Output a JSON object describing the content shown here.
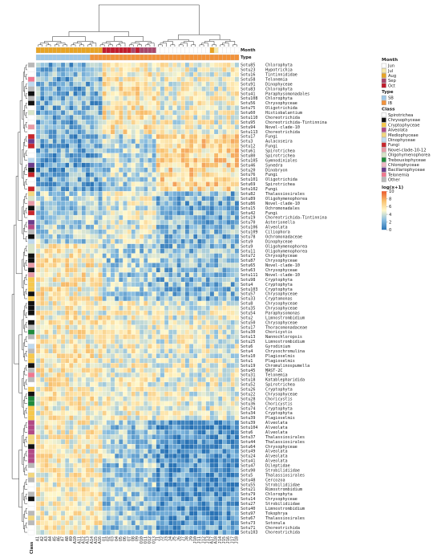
{
  "chart_data": {
    "type": "heatmap",
    "title": "",
    "annotation_labels": {
      "month": "Month",
      "type": "Type",
      "class": "Class"
    },
    "columns": [
      "A1",
      "A2",
      "A3",
      "A4",
      "A5",
      "A6",
      "A7",
      "A8",
      "A9",
      "A10",
      "A11",
      "A12",
      "A13",
      "A14",
      "A15",
      "A16",
      "O1",
      "O2",
      "O3",
      "O4",
      "O5",
      "O6",
      "O7",
      "O8",
      "O9",
      "O10",
      "O11",
      "O12",
      "O13",
      "J1",
      "J2",
      "J3",
      "J4",
      "J5",
      "J6",
      "J7",
      "J8",
      "J9",
      "J10",
      "J11",
      "J12",
      "J13",
      "A17",
      "A18",
      "J14",
      "J15",
      "J16",
      "J17",
      "J18"
    ],
    "column_month": [
      "Aug",
      "Aug",
      "Aug",
      "Aug",
      "Aug",
      "Aug",
      "Aug",
      "Aug",
      "Aug",
      "Aug",
      "Aug",
      "Aug",
      "Aug",
      "Aug",
      "Aug",
      "Aug",
      "Oct",
      "Oct",
      "Oct",
      "Oct",
      "Oct",
      "Oct",
      "Oct",
      "Sep",
      "Oct",
      "Sep",
      "Sep",
      "Sep",
      "Sep",
      "Jun",
      "Jun",
      "Jun",
      "Jun",
      "Jun",
      "Jun",
      "Jun",
      "Jun",
      "Jun",
      "Jun",
      "Jun",
      "Jun",
      "Jun",
      "Aug",
      "Jul",
      "Jun",
      "Jun",
      "Jun",
      "Jun",
      "Jun"
    ],
    "column_type": [
      "SB",
      "SB",
      "SB",
      "SB",
      "SB",
      "SB",
      "SB",
      "SB",
      "SB",
      "SB",
      "SB",
      "SB",
      "SB",
      "IB",
      "IB",
      "IB",
      "IB",
      "IB",
      "IB",
      "IB",
      "IB",
      "IB",
      "IB",
      "IB",
      "IB",
      "IB",
      "IB",
      "IB",
      "IB",
      "IB",
      "IB",
      "IB",
      "IB",
      "IB",
      "IB",
      "IB",
      "IB",
      "IB",
      "IB",
      "IB",
      "IB",
      "IB",
      "IB",
      "IB",
      "IB",
      "IB",
      "IB",
      "IB",
      "IB"
    ],
    "rows": [
      {
        "id": "Sotu85",
        "taxon": "Chlorophyta",
        "class": "Other",
        "pattern": "high_late"
      },
      {
        "id": "Sotu23",
        "taxon": "Hypotrichia",
        "class": "Spirotrichea",
        "pattern": "high_late"
      },
      {
        "id": "Sotu16",
        "taxon": "Tintinnididae",
        "class": "Spirotrichea",
        "pattern": "high_late"
      },
      {
        "id": "Sotu58",
        "taxon": "Telonemia",
        "class": "Telonemia",
        "pattern": "high_late"
      },
      {
        "id": "Sotu91",
        "taxon": "Dinophyceae",
        "class": "Dinophyceae",
        "pattern": "high_late"
      },
      {
        "id": "Sotu83",
        "taxon": "Chlorophyta",
        "class": "Other",
        "pattern": "high_late"
      },
      {
        "id": "Sotu41",
        "taxon": "Paraphysomonadales",
        "class": "Chrysophyceae",
        "pattern": "high_late"
      },
      {
        "id": "Sotu108",
        "taxon": "Chlorophyta",
        "class": "Other",
        "pattern": "high_late"
      },
      {
        "id": "Sotu56",
        "taxon": "Chrysophyceae",
        "class": "Chrysophyceae",
        "pattern": "high_late"
      },
      {
        "id": "Sotu75",
        "taxon": "Oligotrichida",
        "class": "Spirotrichea",
        "pattern": "high_late"
      },
      {
        "id": "Sotu60",
        "taxon": "Histiobalantium",
        "class": "Oligohymenophorea",
        "pattern": "high_late"
      },
      {
        "id": "Sotu110",
        "taxon": "Choreotrichida",
        "class": "Spirotrichea",
        "pattern": "high_late"
      },
      {
        "id": "Sotu95",
        "taxon": "Choreotrichida-Tintinnina",
        "class": "Spirotrichea",
        "pattern": "high_late"
      },
      {
        "id": "Sotu94",
        "taxon": "Novel-clade-10",
        "class": "Novel-clade-10-12",
        "pattern": "high_late"
      },
      {
        "id": "Sotu113",
        "taxon": "Choreotrichida",
        "class": "Spirotrichea",
        "pattern": "high_late"
      },
      {
        "id": "Sotu17",
        "taxon": "Fungi",
        "class": "Fungi",
        "pattern": "fungi"
      },
      {
        "id": "Sotu3",
        "taxon": "Aulacoseira",
        "class": "Bacillariophyceae",
        "pattern": "fungi"
      },
      {
        "id": "Sotu12",
        "taxon": "Fungi",
        "class": "Fungi",
        "pattern": "fungi"
      },
      {
        "id": "Sotu61",
        "taxon": "Spirotrichea",
        "class": "Spirotrichea",
        "pattern": "fungi"
      },
      {
        "id": "Sotu80",
        "taxon": "Spirotrichea",
        "class": "Spirotrichea",
        "pattern": "fungi"
      },
      {
        "id": "Sotu105",
        "taxon": "Gymnodiniales",
        "class": "Dinophyceae",
        "pattern": "fungi"
      },
      {
        "id": "Sotu46",
        "taxon": "Synedra",
        "class": "Bacillariophyceae",
        "pattern": "fungi"
      },
      {
        "id": "Sotu20",
        "taxon": "Dinobryon",
        "class": "Chrysophyceae",
        "pattern": "fungi"
      },
      {
        "id": "Sotu76",
        "taxon": "Fungi",
        "class": "Fungi",
        "pattern": "fungi"
      },
      {
        "id": "Sotu101",
        "taxon": "Oligotrichida",
        "class": "Spirotrichea",
        "pattern": "fungi"
      },
      {
        "id": "Sotu69",
        "taxon": "Spirotrichea",
        "class": "Spirotrichea",
        "pattern": "fungi"
      },
      {
        "id": "Sotu102",
        "taxon": "Fungi",
        "class": "Fungi",
        "pattern": "fungi"
      },
      {
        "id": "Sotu82",
        "taxon": "Thalassiosirales",
        "class": "Mediophyceae",
        "pattern": "mixed"
      },
      {
        "id": "Sotu89",
        "taxon": "Oligohymenophorea",
        "class": "Oligohymenophorea",
        "pattern": "mixed"
      },
      {
        "id": "Sotu86",
        "taxon": "Novel-clade-10",
        "class": "Novel-clade-10-12",
        "pattern": "mixed"
      },
      {
        "id": "Sotu15",
        "taxon": "Ochromonadales",
        "class": "Chrysophyceae",
        "pattern": "mixed"
      },
      {
        "id": "Sotu42",
        "taxon": "Fungi",
        "class": "Fungi",
        "pattern": "mixed"
      },
      {
        "id": "Sotu19",
        "taxon": "Choreotrichida-Tintinnina",
        "class": "Spirotrichea",
        "pattern": "mixed"
      },
      {
        "id": "Sotu70",
        "taxon": "Asterionella",
        "class": "Bacillariophyceae",
        "pattern": "mixed"
      },
      {
        "id": "Sotu106",
        "taxon": "Alveolata",
        "class": "Alveolata",
        "pattern": "mixed"
      },
      {
        "id": "Sotu109",
        "taxon": "Ciliophora",
        "class": "Other",
        "pattern": "mixed"
      },
      {
        "id": "Sotu78",
        "taxon": "Ochromonadaceae",
        "class": "Chrysophyceae",
        "pattern": "mixed"
      },
      {
        "id": "Sotu9",
        "taxon": "Dinophyceae",
        "class": "Dinophyceae",
        "pattern": "mixed"
      },
      {
        "id": "Sotu9",
        "taxon": "Oligohymenophorea",
        "class": "Oligohymenophorea",
        "pattern": "early"
      },
      {
        "id": "Sotu11",
        "taxon": "Oligohymenophorea",
        "class": "Oligohymenophorea",
        "pattern": "early"
      },
      {
        "id": "Sotu72",
        "taxon": "Chrysophyceae",
        "class": "Chrysophyceae",
        "pattern": "early"
      },
      {
        "id": "Sotu87",
        "taxon": "Chrysophyceae",
        "class": "Chrysophyceae",
        "pattern": "early"
      },
      {
        "id": "Sotu65",
        "taxon": "Novel-clade-10",
        "class": "Novel-clade-10-12",
        "pattern": "early"
      },
      {
        "id": "Sotu63",
        "taxon": "Chrysophyceae",
        "class": "Chrysophyceae",
        "pattern": "early"
      },
      {
        "id": "Sotu111",
        "taxon": "Novel-clade-10",
        "class": "Novel-clade-10-12",
        "pattern": "early"
      },
      {
        "id": "Sotu98",
        "taxon": "Cryptophyta",
        "class": "Cryptophyceae",
        "pattern": "early"
      },
      {
        "id": "Sotu4",
        "taxon": "Cryptophyta",
        "class": "Cryptophyceae",
        "pattern": "early"
      },
      {
        "id": "Sotu103",
        "taxon": "Cryptophyta",
        "class": "Cryptophyceae",
        "pattern": "early"
      },
      {
        "id": "Sotu57",
        "taxon": "Chrysophyceae",
        "class": "Chrysophyceae",
        "pattern": "early"
      },
      {
        "id": "Sotu33",
        "taxon": "Cryptomonas",
        "class": "Cryptophyceae",
        "pattern": "early"
      },
      {
        "id": "Sotu8",
        "taxon": "Chrysophyceae",
        "class": "Chrysophyceae",
        "pattern": "broad"
      },
      {
        "id": "Sotu35",
        "taxon": "Chrysophyceae",
        "class": "Chrysophyceae",
        "pattern": "broad"
      },
      {
        "id": "Sotu54",
        "taxon": "Paraphysomonas",
        "class": "Chrysophyceae",
        "pattern": "broad"
      },
      {
        "id": "Sotu2",
        "taxon": "Limnostrombidium",
        "class": "Spirotrichea",
        "pattern": "broad"
      },
      {
        "id": "Sotu50",
        "taxon": "Chrysophyceae",
        "class": "Chrysophyceae",
        "pattern": "broad"
      },
      {
        "id": "Sotu17",
        "taxon": "Thoracomonadaceae",
        "class": "Other",
        "pattern": "broad"
      },
      {
        "id": "Sotu30",
        "taxon": "Choricystis",
        "class": "Trebouxiophyceae",
        "pattern": "broad"
      },
      {
        "id": "Sotu13",
        "taxon": "Nannochloropsis",
        "class": "Other",
        "pattern": "broad"
      },
      {
        "id": "Sotu25",
        "taxon": "Limnostrombidium",
        "class": "Spirotrichea",
        "pattern": "broad"
      },
      {
        "id": "Sotu6",
        "taxon": "Gyrodinium",
        "class": "Dinophyceae",
        "pattern": "broad"
      },
      {
        "id": "Sotu4",
        "taxon": "Chrysochromulina",
        "class": "Other",
        "pattern": "broad"
      },
      {
        "id": "Sotu10",
        "taxon": "Plagioselmis",
        "class": "Cryptophyceae",
        "pattern": "broad"
      },
      {
        "id": "Sotu1",
        "taxon": "Plagioselmis",
        "class": "Cryptophyceae",
        "pattern": "broad"
      },
      {
        "id": "Sotu19",
        "taxon": "Chromulinospumella",
        "class": "Chrysophyceae",
        "pattern": "broad"
      },
      {
        "id": "Sotu45",
        "taxon": "MAST-2C",
        "class": "Other",
        "pattern": "broad"
      },
      {
        "id": "Sotu31",
        "taxon": "Telonemia",
        "class": "Telonemia",
        "pattern": "broad"
      },
      {
        "id": "Sotu18",
        "taxon": "Katablepharidida",
        "class": "Other",
        "pattern": "broad"
      },
      {
        "id": "Sotu52",
        "taxon": "Spirotrichea",
        "class": "Spirotrichea",
        "pattern": "broad"
      },
      {
        "id": "Sotu26",
        "taxon": "Cryptophyta",
        "class": "Cryptophyceae",
        "pattern": "broad"
      },
      {
        "id": "Sotu22",
        "taxon": "Chrysophyceae",
        "class": "Chrysophyceae",
        "pattern": "broad"
      },
      {
        "id": "Sotu28",
        "taxon": "Choricystis",
        "class": "Trebouxiophyceae",
        "pattern": "broad"
      },
      {
        "id": "Sotu36",
        "taxon": "Choricystis",
        "class": "Trebouxiophyceae",
        "pattern": "broad"
      },
      {
        "id": "Sotu74",
        "taxon": "Cryptophyta",
        "class": "Cryptophyceae",
        "pattern": "broad"
      },
      {
        "id": "Sotu34",
        "taxon": "Cryptophyta",
        "class": "Cryptophyceae",
        "pattern": "broad"
      },
      {
        "id": "Sotu39",
        "taxon": "Plagioselmis",
        "class": "Cryptophyceae",
        "pattern": "broad"
      },
      {
        "id": "Sotu39",
        "taxon": "Alveolata",
        "class": "Alveolata",
        "pattern": "summer"
      },
      {
        "id": "Sotu104",
        "taxon": "Alveolata",
        "class": "Alveolata",
        "pattern": "summer"
      },
      {
        "id": "Sotu6",
        "taxon": "Alveolata",
        "class": "Alveolata",
        "pattern": "summer"
      },
      {
        "id": "Sotu37",
        "taxon": "Thalassiosirales",
        "class": "Mediophyceae",
        "pattern": "summer"
      },
      {
        "id": "Sotu44",
        "taxon": "Thalassiosirales",
        "class": "Mediophyceae",
        "pattern": "summer"
      },
      {
        "id": "Sotu64",
        "taxon": "Chrysophyceae",
        "class": "Chrysophyceae",
        "pattern": "summer"
      },
      {
        "id": "Sotu49",
        "taxon": "Alveolata",
        "class": "Alveolata",
        "pattern": "summer"
      },
      {
        "id": "Sotu24",
        "taxon": "Alveolata",
        "class": "Alveolata",
        "pattern": "summer"
      },
      {
        "id": "Sotu41",
        "taxon": "Alveolata",
        "class": "Alveolata",
        "pattern": "summer"
      },
      {
        "id": "Sotu47",
        "taxon": "Dileptidae",
        "class": "Other",
        "pattern": "summer"
      },
      {
        "id": "Sotu90",
        "taxon": "Strobilidiidae",
        "class": "Spirotrichea",
        "pattern": "summer"
      },
      {
        "id": "Sotu5",
        "taxon": "Thalassiosirales",
        "class": "Mediophyceae",
        "pattern": "summer"
      },
      {
        "id": "Sotu48",
        "taxon": "Cercozoa",
        "class": "Other",
        "pattern": "summer"
      },
      {
        "id": "Sotu55",
        "taxon": "Strobilidiidae",
        "class": "Spirotrichea",
        "pattern": "summer"
      },
      {
        "id": "Sotu21",
        "taxon": "Rimostrombidium",
        "class": "Spirotrichea",
        "pattern": "summer"
      },
      {
        "id": "Sotu79",
        "taxon": "Chlorophyta",
        "class": "Other",
        "pattern": "summer"
      },
      {
        "id": "Sotu14",
        "taxon": "Chrysophyceae",
        "class": "Chrysophyceae",
        "pattern": "summer"
      },
      {
        "id": "Sotu27",
        "taxon": "Strobilidiidae",
        "class": "Spirotrichea",
        "pattern": "summer"
      },
      {
        "id": "Sotu40",
        "taxon": "Limnostrombidium",
        "class": "Spirotrichea",
        "pattern": "summer"
      },
      {
        "id": "Sotu97",
        "taxon": "Tokophrya",
        "class": "Other",
        "pattern": "summer"
      },
      {
        "id": "Sotu67",
        "taxon": "Thalassiosirales",
        "class": "Mediophyceae",
        "pattern": "summer"
      },
      {
        "id": "Sotu73",
        "taxon": "Sotonula",
        "class": "Other",
        "pattern": "summer"
      },
      {
        "id": "Sotu71",
        "taxon": "Choreotrichida",
        "class": "Spirotrichea",
        "pattern": "summer"
      },
      {
        "id": "Sotu103",
        "taxon": "Choreotrichida",
        "class": "Spirotrichea",
        "pattern": "summer"
      }
    ],
    "legend": {
      "month": {
        "title": "Month",
        "items": [
          {
            "label": "Jun",
            "color": "#ffffff"
          },
          {
            "label": "Jul",
            "color": "#f6e8a8"
          },
          {
            "label": "Aug",
            "color": "#e8a424"
          },
          {
            "label": "Sep",
            "color": "#a8476a"
          },
          {
            "label": "Oct",
            "color": "#c01c2c"
          }
        ]
      },
      "type": {
        "title": "Type",
        "items": [
          {
            "label": "SB",
            "color": "#9ec8e8"
          },
          {
            "label": "IB",
            "color": "#f2923a"
          }
        ]
      },
      "class": {
        "title": "Class",
        "items": [
          {
            "label": "Spirotrichea",
            "color": "#ffffff"
          },
          {
            "label": "Chrysophyceae",
            "color": "#111111"
          },
          {
            "label": "Cryptophyceae",
            "color": "#f6c84c"
          },
          {
            "label": "Alveolata",
            "color": "#b24a86"
          },
          {
            "label": "Mediophyceae",
            "color": "#f3d77e"
          },
          {
            "label": "Dinophyceae",
            "color": "#bfd9ee"
          },
          {
            "label": "Fungi",
            "color": "#c8262c"
          },
          {
            "label": "Novel-clade-10-12",
            "color": "#e79aa6"
          },
          {
            "label": "Oligohymenophorea",
            "color": "#d8e4c8"
          },
          {
            "label": "Trebouxiophyceae",
            "color": "#1f8a3c"
          },
          {
            "label": "Chlorophyceae",
            "color": "#f0b8c4"
          },
          {
            "label": "Bacillariophyceae",
            "color": "#6c3d8c"
          },
          {
            "label": "Telonemia",
            "color": "#f07890"
          },
          {
            "label": "Other",
            "color": "#b9b9b9"
          }
        ]
      },
      "scale": {
        "title": "log(x+1)",
        "ticks": [
          0,
          2,
          4,
          6,
          8,
          10
        ],
        "range": [
          0,
          10
        ],
        "colors": [
          "#2a73b5",
          "#88bde0",
          "#fff8cc",
          "#f8c06e",
          "#ea5a2f"
        ]
      }
    }
  }
}
